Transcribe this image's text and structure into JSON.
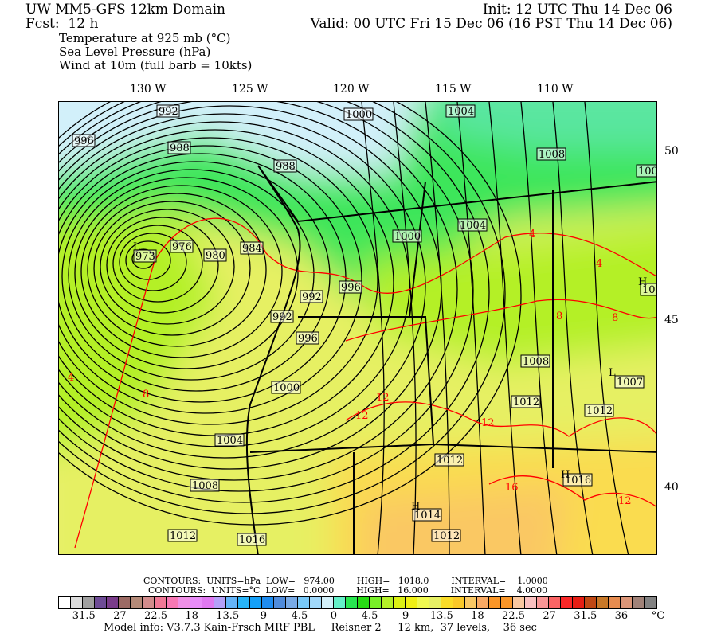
{
  "header": {
    "title": "UW MM5-GFS 12km Domain",
    "forecast": "Fcst:  12 h",
    "init": "Init: 12 UTC Thu 14 Dec 06",
    "valid": "Valid: 00 UTC Fri 15 Dec 06 (16 PST Thu 14 Dec 06)",
    "fields": [
      "Temperature at 925 mb (°C)",
      "Sea Level Pressure (hPa)",
      "Wind at 10m (full barb = 10kts)"
    ]
  },
  "map": {
    "longitude_labels": [
      "130 W",
      "125 W",
      "120 W",
      "115 W",
      "110 W"
    ],
    "latitude_labels": [
      "50",
      "45",
      "40"
    ],
    "pressure_labels": [
      "992",
      "996",
      "988",
      "988",
      "1000",
      "1004",
      "1008",
      "1008",
      "973",
      "976",
      "980",
      "984",
      "1000",
      "1004",
      "996",
      "992",
      "992",
      "996",
      "1012",
      "1008",
      "1007",
      "1012",
      "1012",
      "1000",
      "1004",
      "1012",
      "1008",
      "1016",
      "1014",
      "1012",
      "1016",
      "1012"
    ],
    "pressure_centers": [
      {
        "type": "L",
        "value": "973"
      },
      {
        "type": "H",
        "value": "1012"
      },
      {
        "type": "L",
        "value": "1007"
      },
      {
        "type": "H",
        "value": "1016"
      },
      {
        "type": "H",
        "value": "1014"
      }
    ],
    "temperature_labels": [
      "4",
      "4",
      "8",
      "8",
      "12",
      "12",
      "16",
      "12",
      "8",
      "4",
      "12"
    ],
    "contour_colors": {
      "pressure": "#000000",
      "temperature": "#ff0000"
    }
  },
  "contour_info": {
    "line1": "CONTOURS:  UNITS=hPa  LOW=   974.00        HIGH=   1018.0        INTERVAL=    1.0000",
    "line2": "CONTOURS:  UNITS=°C  LOW=   0.0000        HIGH=   16.000        INTERVAL=    4.0000"
  },
  "colorbar": {
    "labels": [
      "-31.5",
      "-27",
      "-22.5",
      "-18",
      "-13.5",
      "-9",
      "-4.5",
      "0",
      "4.5",
      "9",
      "13.5",
      "18",
      "22.5",
      "27",
      "31.5",
      "36"
    ],
    "unit": "°C",
    "colors": [
      "#ffffff",
      "#dcdcdc",
      "#a0a0a0",
      "#6e4c96",
      "#7a3c8a",
      "#9c6a64",
      "#b48a78",
      "#d28c8c",
      "#f07896",
      "#f878b4",
      "#f090e6",
      "#e88cf8",
      "#e078f0",
      "#b4a0f8",
      "#64b4f8",
      "#28b4f8",
      "#14a0f8",
      "#1e8cf0",
      "#508cdc",
      "#78aae6",
      "#78c8f8",
      "#a0d8fa",
      "#d2f0fa",
      "#64f0c8",
      "#28e650",
      "#28dc14",
      "#78f028",
      "#b4f028",
      "#dcf014",
      "#f0f014",
      "#f0fa50",
      "#e6f064",
      "#fadc28",
      "#fac828",
      "#fac864",
      "#faaa64",
      "#fa9628",
      "#fa9628",
      "#fac8a0",
      "#fac0c0",
      "#fa9696",
      "#fa6464",
      "#fa2828",
      "#e61e14",
      "#c04814",
      "#c87828",
      "#e68c50",
      "#dc9678",
      "#a08278",
      "#828282"
    ]
  },
  "model_info": "Model info: V3.7.3 Kain-Frsch MRF PBL     Reisner 2     12 km,  37 levels,    36 sec"
}
